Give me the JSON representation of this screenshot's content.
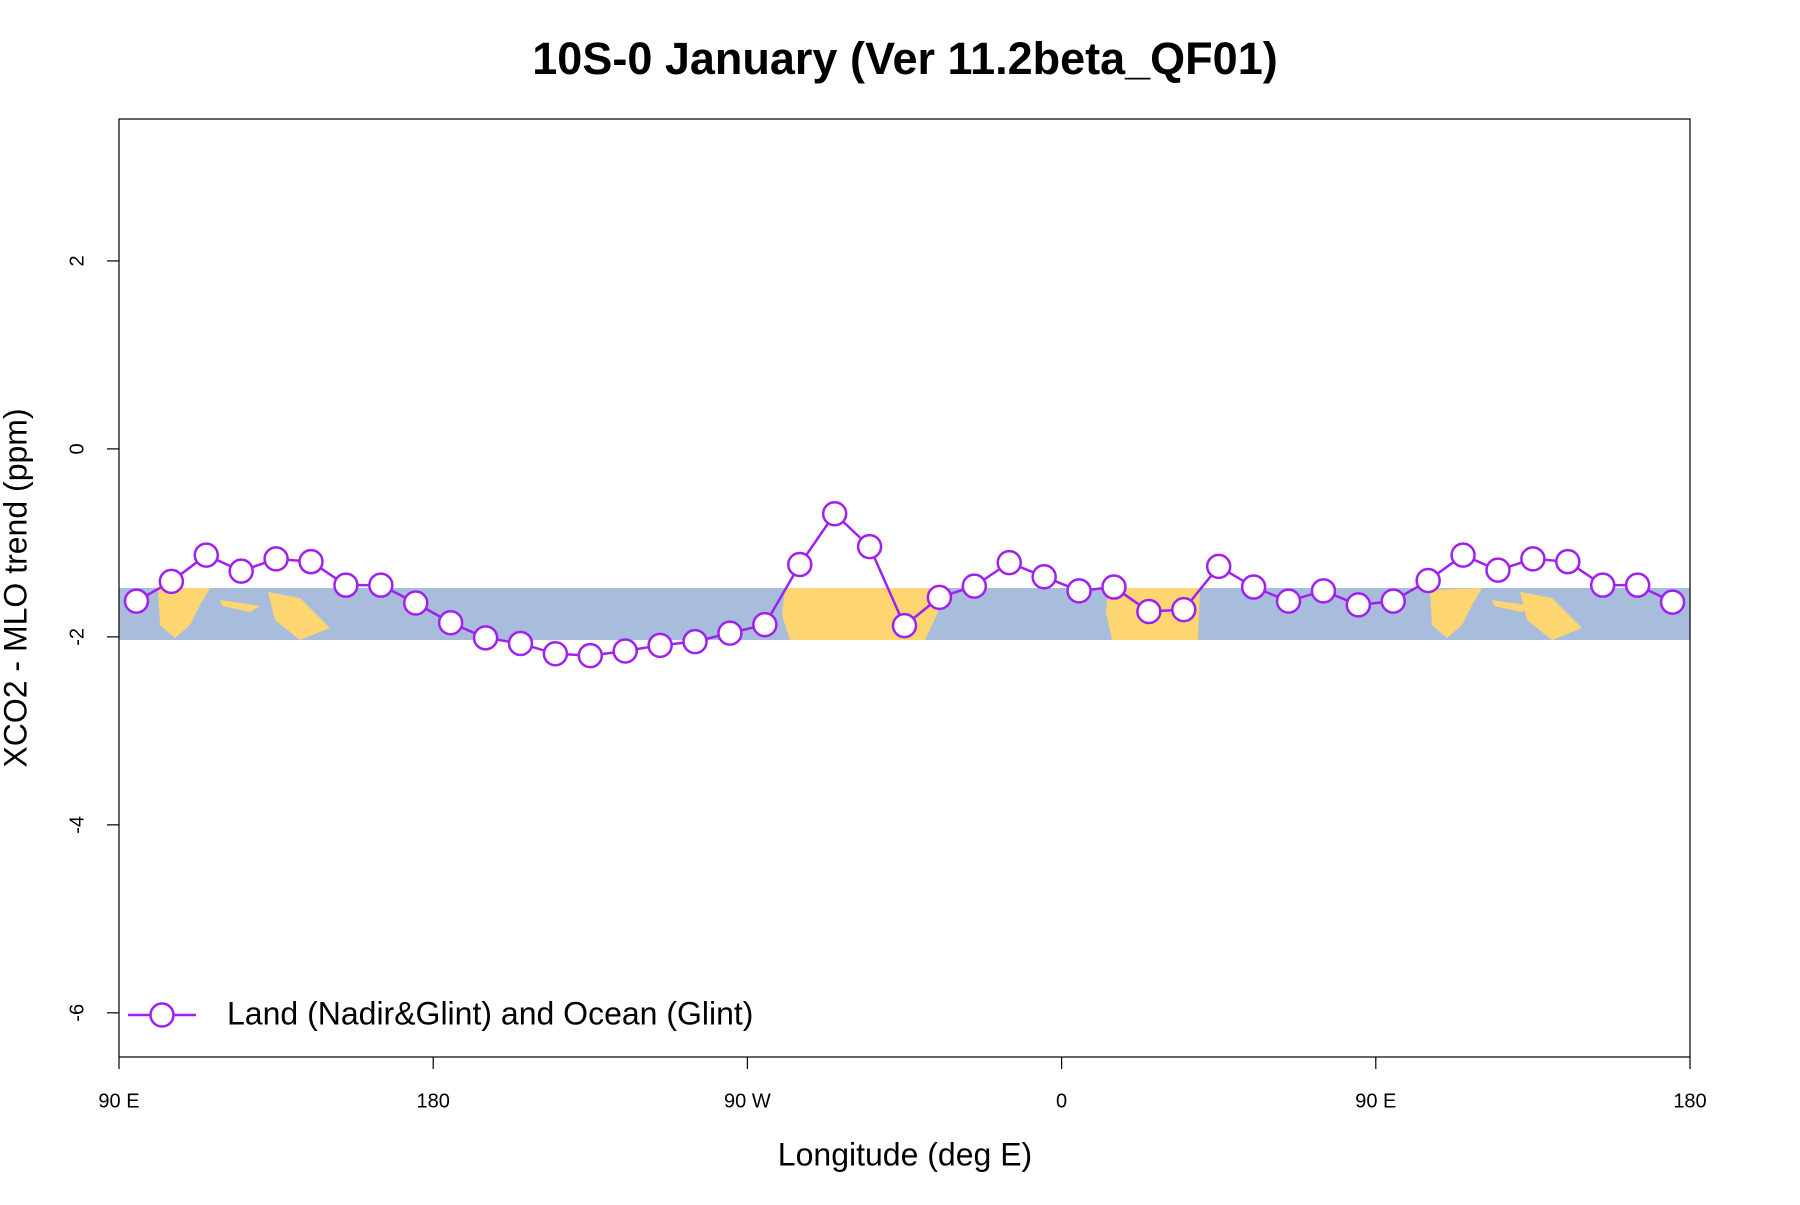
{
  "chart_data": {
    "type": "line",
    "title": "10S-0 January (Ver 11.2beta_QF01)",
    "x_label": "Longitude (deg E)",
    "y_label": "XCO2 - MLO trend (ppm)",
    "x": [
      95,
      105,
      115,
      125,
      135,
      145,
      155,
      165,
      175,
      185,
      195,
      205,
      215,
      225,
      235,
      245,
      255,
      265,
      275,
      285,
      295,
      305,
      315,
      325,
      335,
      345,
      355,
      365,
      375,
      385,
      395,
      405,
      415,
      425,
      435,
      445,
      455,
      465,
      475,
      485,
      495,
      505,
      515,
      525,
      535
    ],
    "series": [
      {
        "name": "Land (Nadir&Glint) and Ocean (Glint)",
        "color": "#a020f0",
        "values": [
          -1.62,
          -1.41,
          -1.13,
          -1.3,
          -1.17,
          -1.2,
          -1.45,
          -1.45,
          -1.64,
          -1.85,
          -2.01,
          -2.07,
          -2.18,
          -2.2,
          -2.15,
          -2.09,
          -2.05,
          -1.96,
          -1.87,
          -1.23,
          -0.69,
          -1.04,
          -1.88,
          -1.58,
          -1.46,
          -1.21,
          -1.36,
          -1.51,
          -1.47,
          -1.73,
          -1.71,
          -1.25,
          -1.47,
          -1.62,
          -1.51,
          -1.66,
          -1.62,
          -1.4,
          -1.13,
          -1.29,
          -1.17,
          -1.2,
          -1.45,
          -1.45,
          -1.63
        ]
      }
    ],
    "xlim": [
      90,
      540
    ],
    "xticks": [
      {
        "value": 90,
        "label": "90 E"
      },
      180,
      {
        "value": 270,
        "label": "90 W"
      },
      {
        "value": 360,
        "label": "0"
      },
      {
        "value": 450,
        "label": "90 E"
      },
      {
        "value": 540,
        "label": "180"
      }
    ],
    "ylim": [
      -6.47,
      3.51
    ],
    "yticks": [
      -6,
      -4,
      -2,
      0,
      2
    ],
    "legend": "bottom-left"
  }
}
